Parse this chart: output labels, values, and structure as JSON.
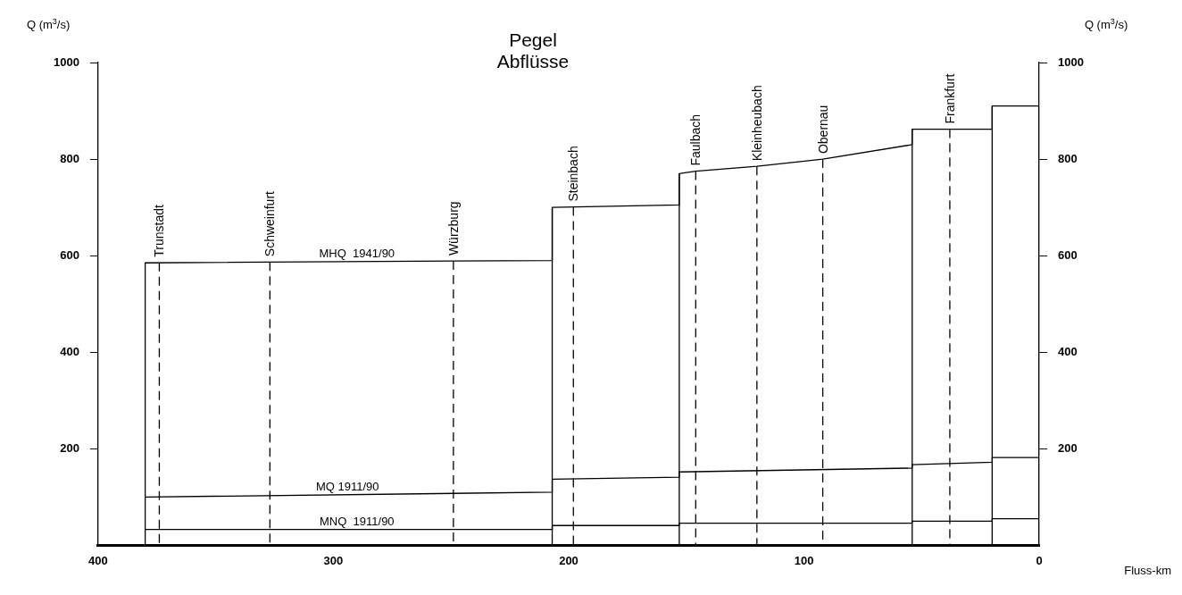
{
  "chart_data": {
    "type": "line",
    "title": "Pegel",
    "subtitle": "Abflüsse",
    "xlabel": "Fluss-km",
    "ylabel": "Q (m$^{3}$/s)",
    "y2label": "Q (m$^{3}$/s)",
    "xlim": [
      400,
      0
    ],
    "xticks": [
      400,
      300,
      200,
      100,
      0
    ],
    "ylim": [
      0,
      1000
    ],
    "yticks": [
      200,
      400,
      600,
      800,
      1000
    ],
    "y2lim": [
      0,
      1000
    ],
    "y2ticks": [
      200,
      400,
      600,
      800,
      1000
    ],
    "grid": false,
    "legend": false,
    "marker": "none",
    "series": [
      {
        "color": "#000000",
        "x": [
          380,
          380,
          207,
          207,
          153,
          153,
          146,
          120,
          92,
          54,
          54,
          20,
          20,
          0,
          0
        ],
        "values": [
          0,
          585,
          590,
          700,
          705,
          770,
          775,
          785,
          800,
          830,
          862,
          862,
          910,
          910,
          0
        ]
      },
      {
        "color": "#000000",
        "x": [
          380,
          207,
          207,
          153,
          153,
          54,
          54,
          20,
          20,
          0
        ],
        "values": [
          100,
          110,
          137,
          141,
          152,
          160,
          167,
          172,
          182,
          182
        ]
      },
      {
        "color": "#000000",
        "x": [
          380,
          207,
          207,
          153,
          153,
          54,
          54,
          20,
          20,
          0
        ],
        "values": [
          33,
          33,
          41,
          41,
          46,
          46,
          50,
          50,
          55,
          55
        ]
      },
      {
        "color": "#000000",
        "x": [
          207,
          207,
          null,
          153,
          153,
          null,
          54,
          54,
          null,
          20,
          20
        ],
        "values": [
          0,
          700,
          null,
          0,
          770,
          null,
          0,
          862,
          null,
          0,
          910
        ]
      },
      {
        "color": "#000000",
        "line_style": "dashed",
        "x": [
          374,
          374,
          null,
          327,
          327,
          null,
          249,
          249,
          null,
          198,
          198,
          null,
          146,
          146,
          null,
          120,
          120,
          null,
          92,
          92,
          null,
          38,
          38
        ],
        "values": [
          586,
          0,
          null,
          587,
          0,
          null,
          589,
          0,
          null,
          701,
          0,
          null,
          775,
          0,
          null,
          785,
          0,
          null,
          800,
          0,
          null,
          862,
          0
        ]
      }
    ],
    "annotations": [
      {
        "text": "MHQ  1941/90",
        "x": 290,
        "y": 588
      },
      {
        "text": "MQ 1911/90",
        "x": 294,
        "y": 105
      },
      {
        "text": "MNQ  1911/90",
        "x": 290,
        "y": 33
      },
      {
        "text": "Trunstadt",
        "x": 374,
        "y": 586
      },
      {
        "text": "Schweinfurt",
        "x": 327,
        "y": 587
      },
      {
        "text": "Würzburg",
        "x": 249,
        "y": 589
      },
      {
        "text": "Steinbach",
        "x": 198,
        "y": 701
      },
      {
        "text": "Faulbach",
        "x": 146,
        "y": 775
      },
      {
        "text": "Kleinheubach",
        "x": 120,
        "y": 785
      },
      {
        "text": "Obernau",
        "x": 92,
        "y": 800
      },
      {
        "text": "Frankfurt",
        "x": 38,
        "y": 862
      }
    ]
  }
}
